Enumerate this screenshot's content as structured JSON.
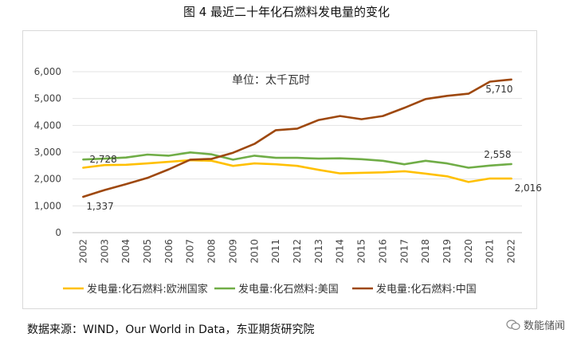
{
  "figure_title": "图 4  最近二十年化石燃料发电量的变化",
  "source_note": "数据来源：WIND，Our World in Data，东亚期货研究院",
  "watermark": "数能储闻",
  "chart_data": {
    "type": "line",
    "title": "图 4  最近二十年化石燃料发电量的变化",
    "unit_label": "单位：太千瓦时",
    "xlabel": "",
    "ylabel": "",
    "ylim": [
      0,
      6000
    ],
    "yticks": [
      0,
      1000,
      2000,
      3000,
      4000,
      5000,
      6000
    ],
    "ytick_labels": [
      "0",
      "1,000",
      "2,000",
      "3,000",
      "4,000",
      "5,000",
      "6,000"
    ],
    "categories": [
      "2002",
      "2003",
      "2004",
      "2005",
      "2006",
      "2007",
      "2008",
      "2009",
      "2010",
      "2011",
      "2012",
      "2013",
      "2014",
      "2015",
      "2016",
      "2017",
      "2018",
      "2019",
      "2020",
      "2021",
      "2022"
    ],
    "legend_position": "bottom",
    "series": [
      {
        "name": "发电量:化石燃料:欧洲国家",
        "color": "#FFC000",
        "values": [
          2420,
          2520,
          2530,
          2580,
          2640,
          2700,
          2680,
          2490,
          2580,
          2550,
          2490,
          2340,
          2210,
          2230,
          2250,
          2290,
          2200,
          2100,
          1890,
          2020,
          2016
        ]
      },
      {
        "name": "发电量:化石燃料:美国",
        "color": "#70AD47",
        "values": [
          2728,
          2760,
          2800,
          2910,
          2870,
          2990,
          2920,
          2720,
          2870,
          2790,
          2790,
          2760,
          2770,
          2740,
          2680,
          2550,
          2680,
          2580,
          2420,
          2500,
          2558
        ]
      },
      {
        "name": "发电量:化石燃料:中国",
        "color": "#9E480E",
        "values": [
          1337,
          1590,
          1810,
          2040,
          2360,
          2720,
          2750,
          2980,
          3310,
          3820,
          3880,
          4200,
          4350,
          4230,
          4350,
          4650,
          4980,
          5100,
          5180,
          5630,
          5710
        ]
      }
    ],
    "data_labels": [
      {
        "series": 1,
        "index": 0,
        "text": "2,728",
        "placement": "right"
      },
      {
        "series": 2,
        "index": 0,
        "text": "1,337",
        "placement": "below-right"
      },
      {
        "series": 1,
        "index": 20,
        "text": "2,558",
        "placement": "above-left"
      },
      {
        "series": 0,
        "index": 20,
        "text": "2,016",
        "placement": "below-right"
      },
      {
        "series": 2,
        "index": 20,
        "text": "5,710",
        "placement": "below-left"
      }
    ]
  }
}
